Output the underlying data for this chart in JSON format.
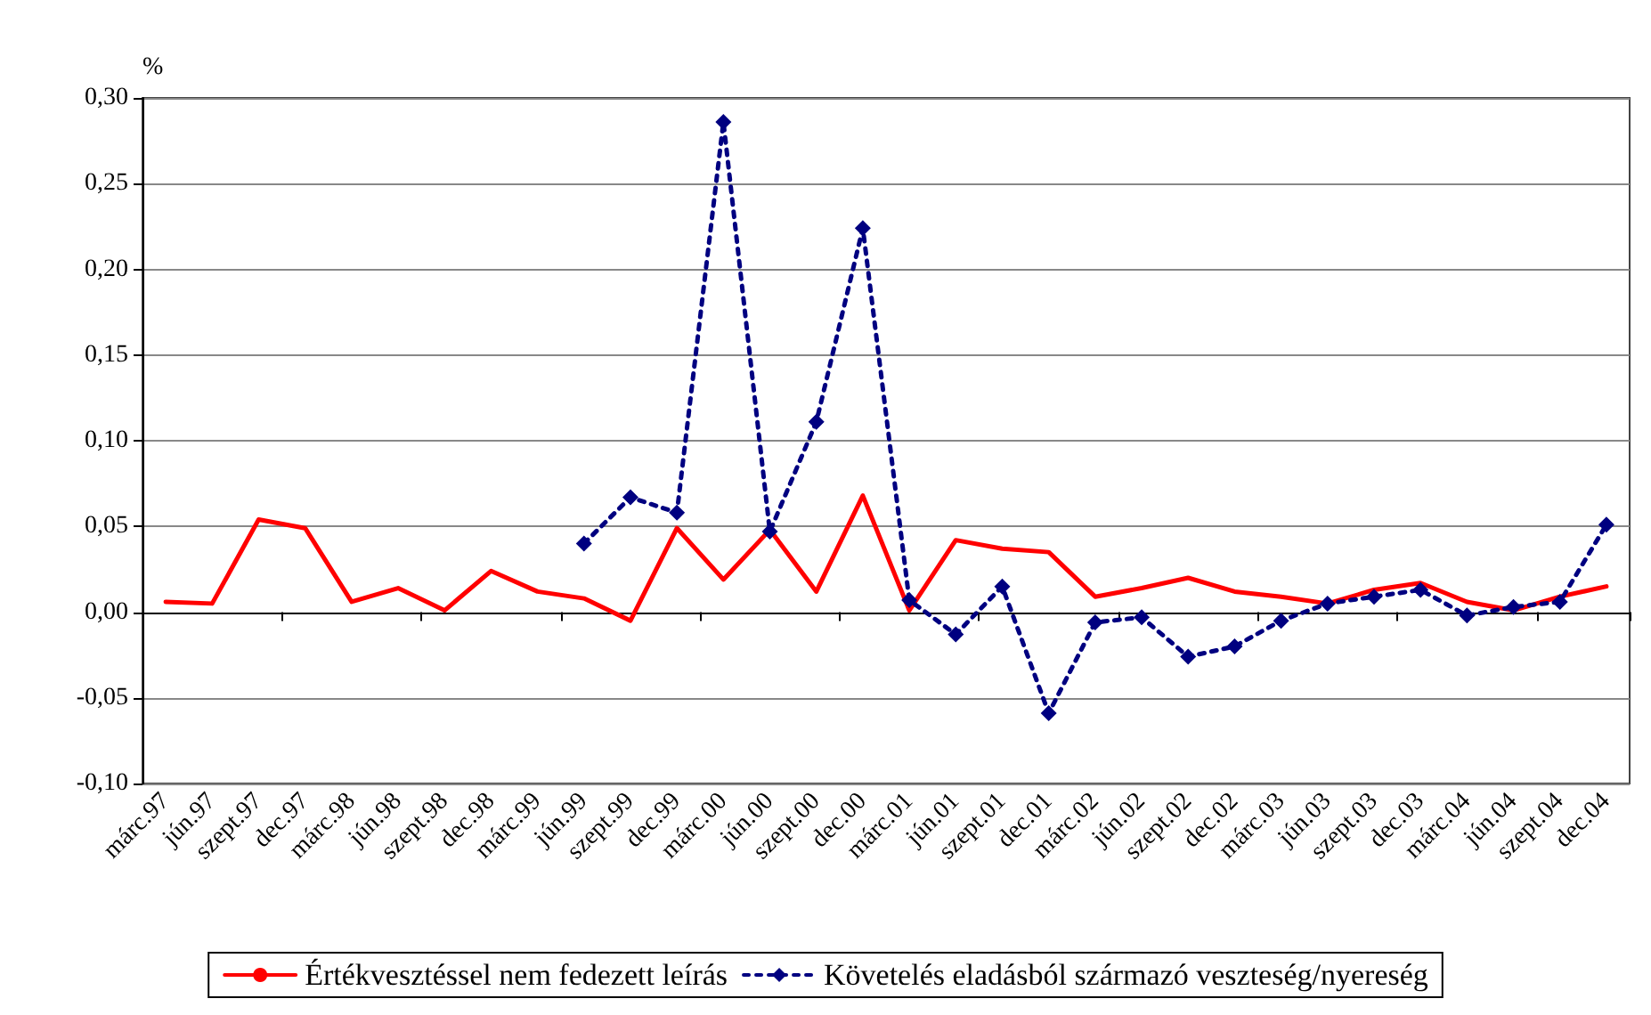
{
  "chart_data": {
    "type": "line",
    "ylabel": "%",
    "categories": [
      "márc.97",
      "jún.97",
      "szept.97",
      "dec.97",
      "márc.98",
      "jún.98",
      "szept.98",
      "dec.98",
      "márc.99",
      "jún.99",
      "szept.99",
      "dec.99",
      "márc.00",
      "jún.00",
      "szept.00",
      "dec.00",
      "márc.01",
      "jún.01",
      "szept.01",
      "dec.01",
      "márc.02",
      "jún.02",
      "szept.02",
      "dec.02",
      "márc.03",
      "jún.03",
      "szept.03",
      "dec.03",
      "márc.04",
      "jún.04",
      "szept.04",
      "dec.04"
    ],
    "series": [
      {
        "name": "Értékvesztéssel nem fedezett leírás",
        "color": "#ff0000",
        "marker": "none",
        "line_style": "solid",
        "values": [
          0.006,
          0.005,
          0.054,
          0.049,
          0.006,
          0.014,
          0.001,
          0.024,
          0.012,
          0.008,
          -0.005,
          0.049,
          0.019,
          0.048,
          0.012,
          0.068,
          0.001,
          0.042,
          0.037,
          0.035,
          0.009,
          0.014,
          0.02,
          0.012,
          0.009,
          0.005,
          0.013,
          0.017,
          0.006,
          0.001,
          0.009,
          0.015
        ]
      },
      {
        "name": "Követelés eladásból származó veszteség/nyereség",
        "color": "#000080",
        "marker": "diamond",
        "line_style": "dotted",
        "values": [
          null,
          null,
          null,
          null,
          null,
          null,
          null,
          null,
          null,
          0.04,
          0.067,
          0.058,
          0.286,
          0.047,
          0.111,
          0.224,
          0.007,
          -0.013,
          0.015,
          -0.059,
          -0.006,
          -0.003,
          -0.026,
          -0.02,
          -0.005,
          0.005,
          0.009,
          0.013,
          -0.002,
          0.003,
          0.006,
          0.051
        ]
      }
    ],
    "ylim": [
      -0.1,
      0.3
    ],
    "yticks": [
      {
        "value": -0.1,
        "label": "-0,10"
      },
      {
        "value": -0.05,
        "label": "-0,05"
      },
      {
        "value": 0,
        "label": "0,00"
      },
      {
        "value": 0.05,
        "label": "0,05"
      },
      {
        "value": 0.1,
        "label": "0,10"
      },
      {
        "value": 0.15,
        "label": "0,15"
      },
      {
        "value": 0.2,
        "label": "0,20"
      },
      {
        "value": 0.25,
        "label": "0,25"
      },
      {
        "value": 0.3,
        "label": "0,30"
      }
    ],
    "grid": "y",
    "legend": "bottom"
  }
}
